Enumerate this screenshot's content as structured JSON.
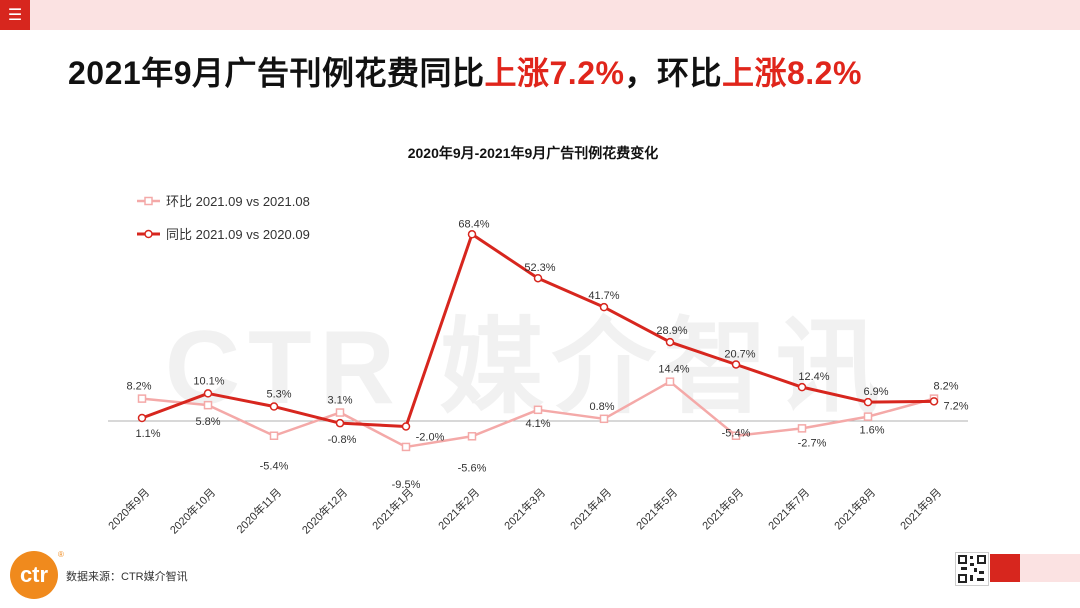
{
  "headline": {
    "part1": "2021年9月广告刊例花费同比",
    "hl1": "上涨7.2%",
    "part2": "，环比",
    "hl2": "上涨8.2%"
  },
  "watermark": "CTR 媒介智讯",
  "logo": {
    "text": "ctr",
    "reg": "®"
  },
  "source": "数据来源：CTR媒介智讯",
  "chart_data": {
    "type": "line",
    "title": "2020年9月-2021年9月广告刊例花费变化",
    "categories": [
      "2020年9月",
      "2020年10月",
      "2020年11月",
      "2020年12月",
      "2021年1月",
      "2021年2月",
      "2021年3月",
      "2021年4月",
      "2021年5月",
      "2021年6月",
      "2021年7月",
      "2021年8月",
      "2021年9月"
    ],
    "series": [
      {
        "name": "环比 2021.09 vs 2021.08",
        "values": [
          8.2,
          5.8,
          -5.4,
          3.1,
          -9.5,
          -5.6,
          4.1,
          0.8,
          14.4,
          -5.4,
          -2.7,
          1.6,
          8.2
        ],
        "color": "#f4a9a8",
        "marker": "square"
      },
      {
        "name": "同比 2021.09 vs 2020.09",
        "values": [
          1.1,
          10.1,
          5.3,
          -0.8,
          -2.0,
          68.4,
          52.3,
          41.7,
          28.9,
          20.7,
          12.4,
          6.9,
          7.2
        ],
        "color": "#d7261e",
        "marker": "circle"
      }
    ],
    "labels": [
      [
        "8.2%",
        "5.8%",
        "-5.4%",
        "3.1%",
        "-9.5%",
        "-5.6%",
        "4.1%",
        "0.8%",
        "14.4%",
        "-5.4%",
        "-2.7%",
        "1.6%",
        "8.2%"
      ],
      [
        "1.1%",
        "10.1%",
        "5.3%",
        "-0.8%",
        "-2.0%",
        "68.4%",
        "52.3%",
        "41.7%",
        "28.9%",
        "20.7%",
        "12.4%",
        "6.9%",
        "7.2%"
      ]
    ],
    "legend": "top-left",
    "grid": false
  }
}
